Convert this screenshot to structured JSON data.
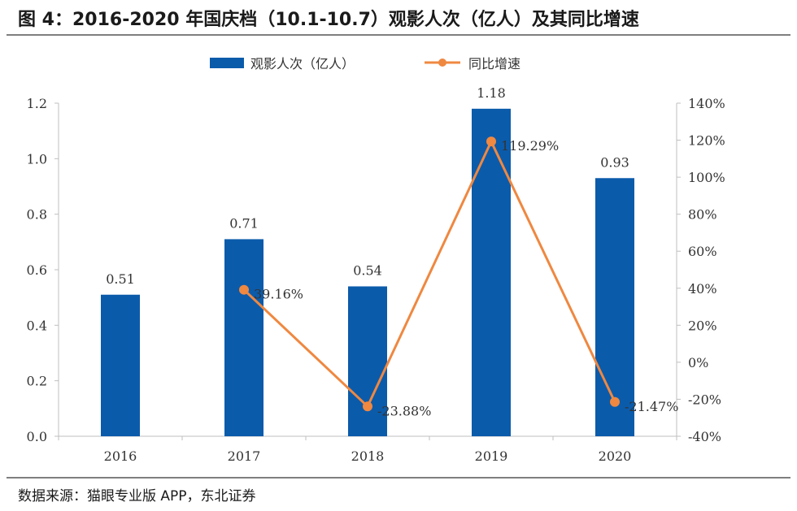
{
  "title": "图  4：2016-2020 年国庆档（10.1-10.7）观影人次（亿人）及其同比增速",
  "source": "数据来源：猫眼专业版 APP，东北证券",
  "colors": {
    "bar": "#0b5bab",
    "line": "#ef8840",
    "axis": "#bfbfbf",
    "text": "#333333"
  },
  "chart_data": {
    "type": "bar+line",
    "categories": [
      "2016",
      "2017",
      "2018",
      "2019",
      "2020"
    ],
    "series": [
      {
        "name": "观影人次（亿人）",
        "type": "bar",
        "axis": "left",
        "values": [
          0.51,
          0.71,
          0.54,
          1.18,
          0.93
        ],
        "labels": [
          "0.51",
          "0.71",
          "0.54",
          "1.18",
          "0.93"
        ]
      },
      {
        "name": "同比增速",
        "type": "line",
        "axis": "right",
        "values": [
          null,
          39.16,
          -23.88,
          119.29,
          -21.47
        ],
        "labels": [
          null,
          "39.16%",
          "-23.88%",
          "119.29%",
          "-21.47%"
        ]
      }
    ],
    "y_left": {
      "min": 0,
      "max": 1.2,
      "ticks": [
        "0.0",
        "0.2",
        "0.4",
        "0.6",
        "0.8",
        "1.0",
        "1.2"
      ]
    },
    "y_right": {
      "min": -40,
      "max": 140,
      "ticks": [
        "-40%",
        "-20%",
        "0%",
        "20%",
        "40%",
        "60%",
        "80%",
        "100%",
        "120%",
        "140%"
      ]
    },
    "legend_position": "top-center"
  }
}
